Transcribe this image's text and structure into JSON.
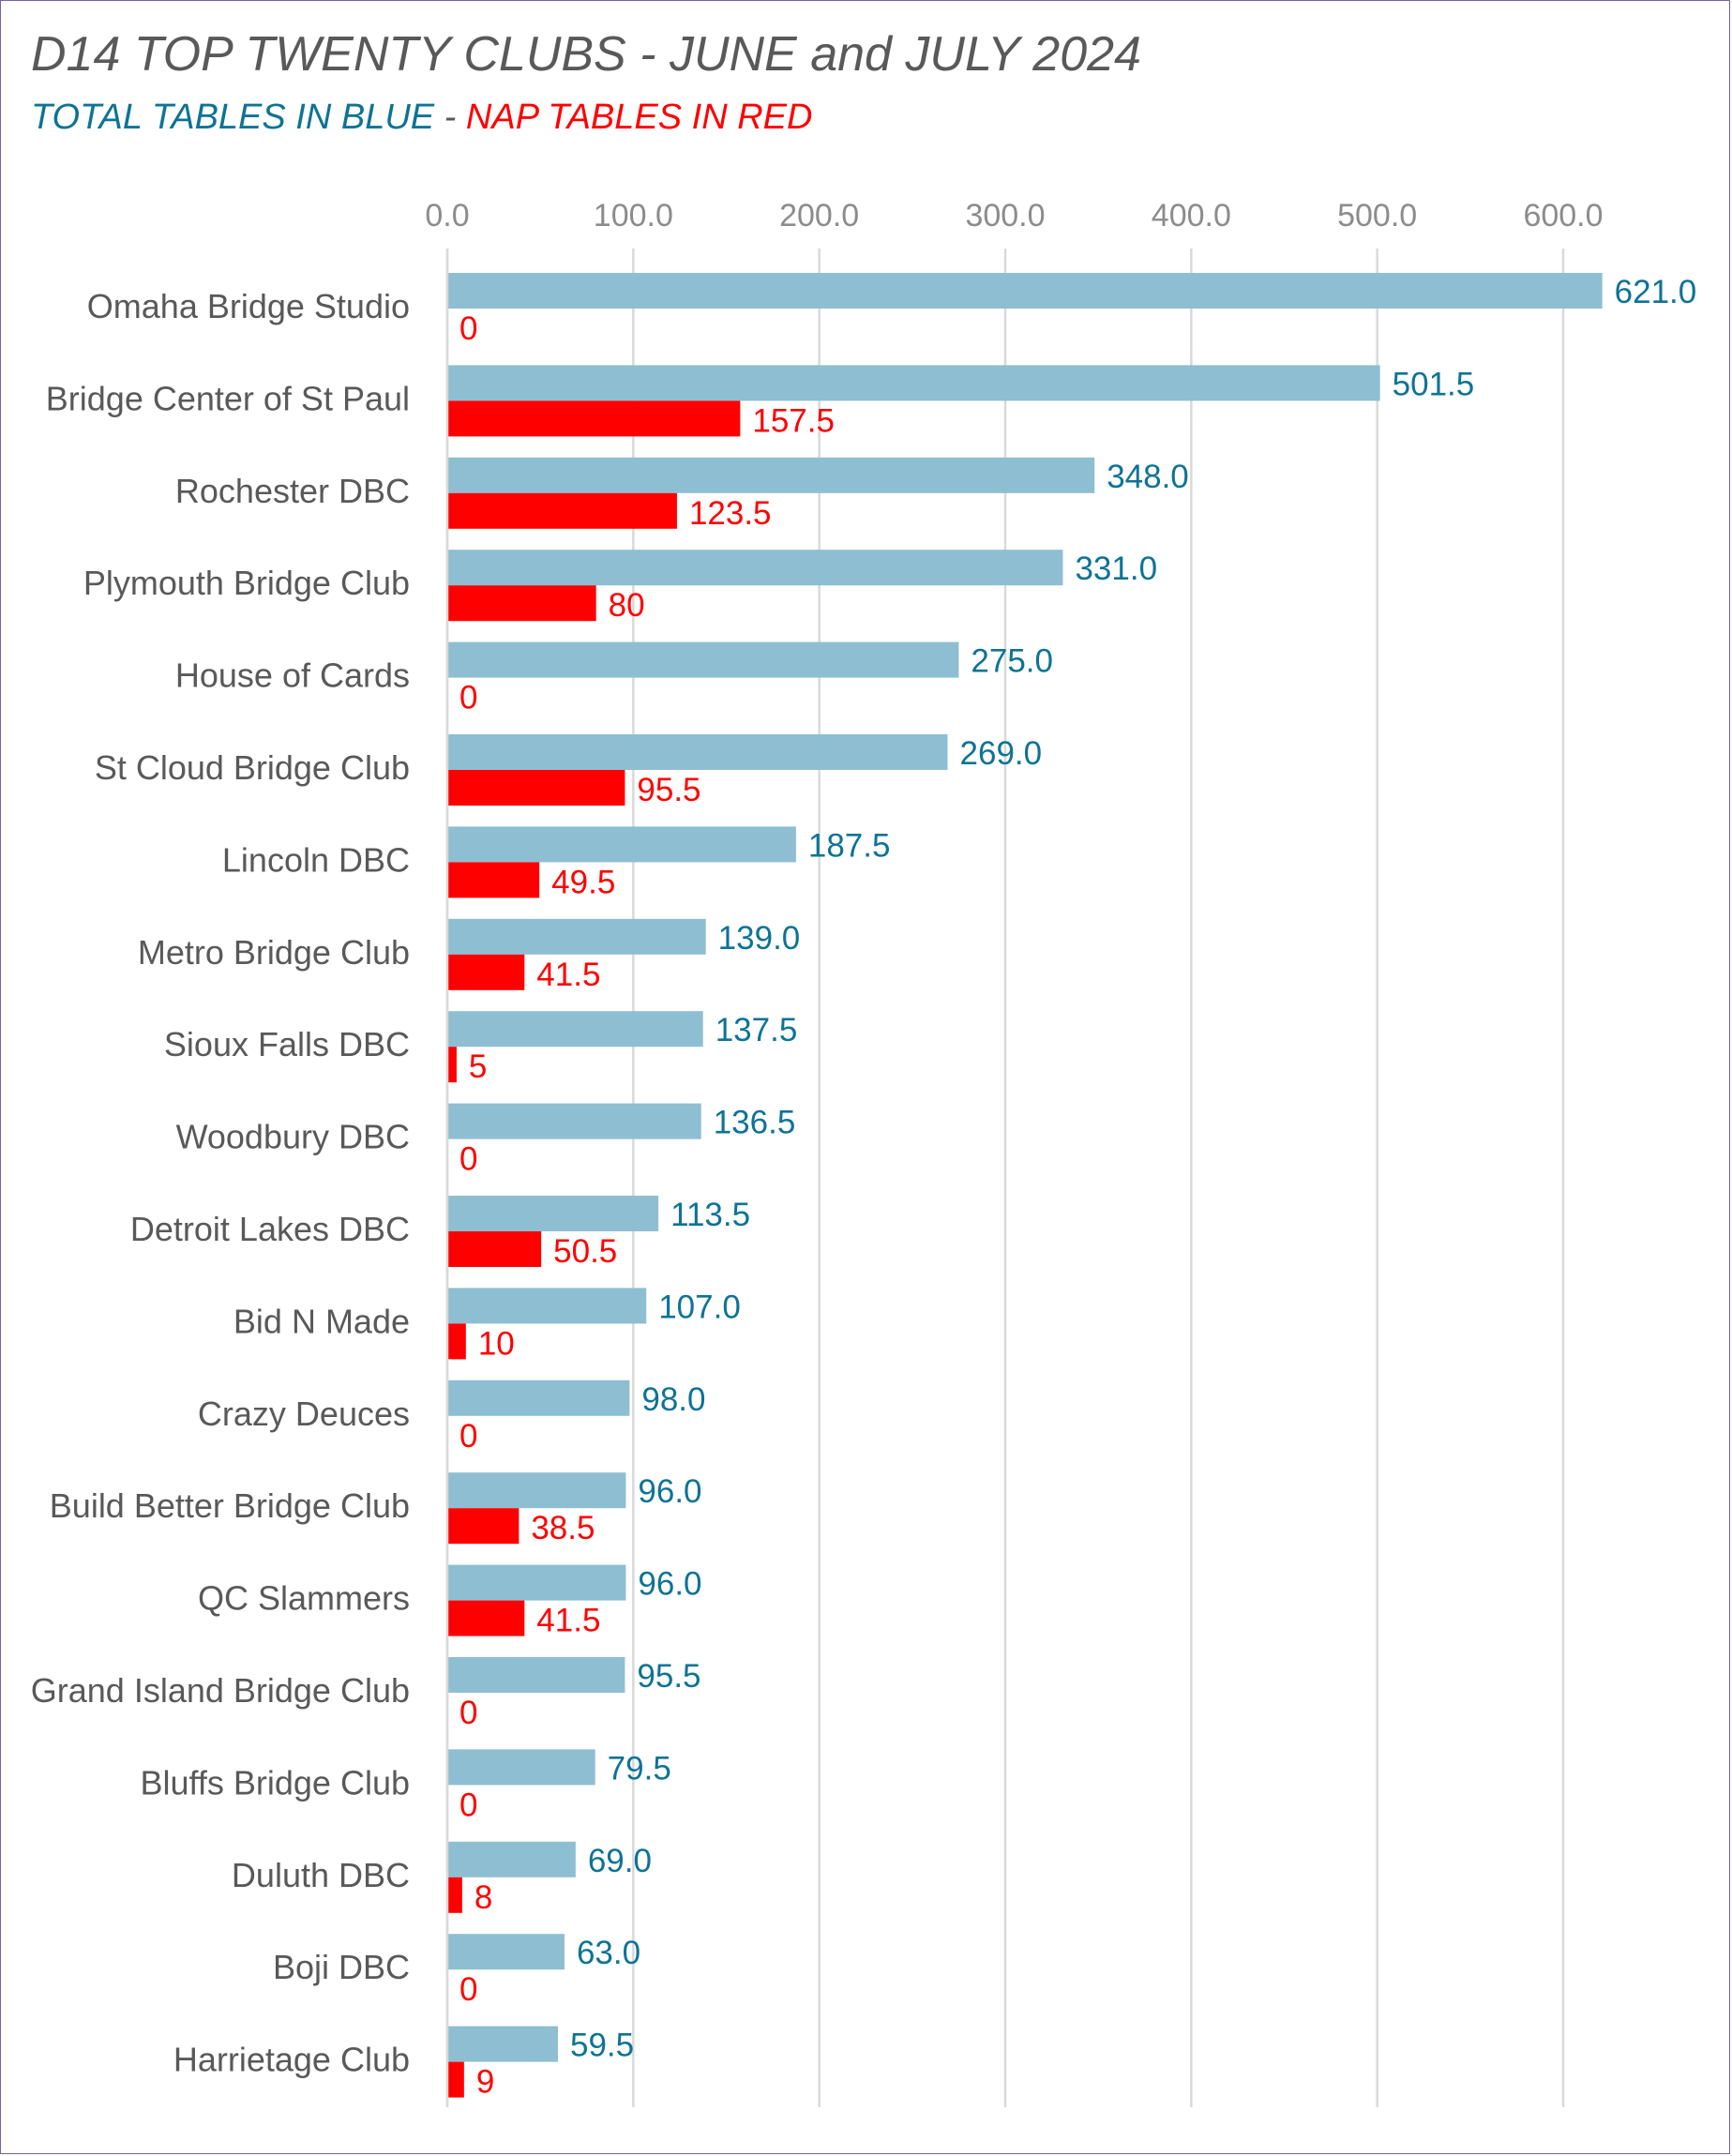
{
  "chart_data": {
    "type": "bar",
    "orientation": "horizontal",
    "title": "D14 TOP TWENTY CLUBS - JUNE and JULY 2024",
    "subtitle": {
      "part1": "TOTAL TABLES IN BLUE",
      "separator": " - ",
      "part2": "NAP TABLES IN RED"
    },
    "xlim": [
      0,
      600
    ],
    "xticks": [
      0,
      100,
      200,
      300,
      400,
      500,
      600
    ],
    "xtick_labels": [
      "0.0",
      "100.0",
      "200.0",
      "300.0",
      "400.0",
      "500.0",
      "600.0"
    ],
    "grid": "vertical",
    "categories": [
      "Omaha Bridge Studio",
      "Bridge Center of St Paul",
      "Rochester DBC",
      "Plymouth Bridge Club",
      "House of Cards",
      "St Cloud Bridge Club",
      "Lincoln DBC",
      "Metro Bridge Club",
      "Sioux Falls DBC",
      "Woodbury DBC",
      "Detroit Lakes DBC",
      "Bid N Made",
      "Crazy Deuces",
      "Build Better Bridge Club",
      "QC Slammers",
      "Grand Island Bridge Club",
      "Bluffs Bridge Club",
      "Duluth DBC",
      "Boji DBC",
      "Harrietage Club"
    ],
    "series": [
      {
        "color": "#8cbdd0",
        "label_color": "#0e7395",
        "values": [
          621.0,
          501.5,
          348.0,
          331.0,
          275.0,
          269.0,
          187.5,
          139.0,
          137.5,
          136.5,
          113.5,
          107.0,
          98.0,
          96.0,
          96.0,
          95.5,
          79.5,
          69.0,
          63.0,
          59.5
        ],
        "labels": [
          "621.0",
          "501.5",
          "348.0",
          "331.0",
          "275.0",
          "269.0",
          "187.5",
          "139.0",
          "137.5",
          "136.5",
          "113.5",
          "107.0",
          "98.0",
          "96.0",
          "96.0",
          "95.5",
          "79.5",
          "69.0",
          "63.0",
          "59.5"
        ]
      },
      {
        "color": "#ff0000",
        "label_color": "#ff0000",
        "values": [
          0,
          157.5,
          123.5,
          80,
          0,
          95.5,
          49.5,
          41.5,
          5,
          0,
          50.5,
          10,
          0,
          38.5,
          41.5,
          0,
          0,
          8,
          0,
          9
        ],
        "labels": [
          "0",
          "157.5",
          "123.5",
          "80",
          "0",
          "95.5",
          "49.5",
          "41.5",
          "5",
          "0",
          "50.5",
          "10",
          "0",
          "38.5",
          "41.5",
          "0",
          "0",
          "8",
          "0",
          "9"
        ]
      }
    ]
  }
}
